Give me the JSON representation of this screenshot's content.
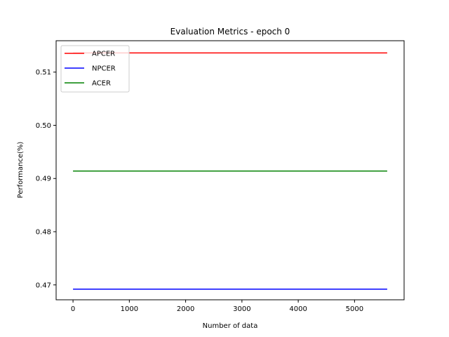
{
  "chart_data": {
    "type": "line",
    "title": "Evaluation Metrics - epoch 0",
    "xlabel": "Number of data",
    "ylabel": "Performance(%)",
    "xlim": [
      -300,
      5880
    ],
    "ylim": [
      0.4672,
      0.5159
    ],
    "x_ticks": [
      0,
      1000,
      2000,
      3000,
      4000,
      5000
    ],
    "y_ticks": [
      0.47,
      0.48,
      0.49,
      0.5,
      0.51
    ],
    "x_tick_labels": [
      "0",
      "1000",
      "2000",
      "3000",
      "4000",
      "5000"
    ],
    "y_tick_labels": [
      "0.47",
      "0.48",
      "0.49",
      "0.50",
      "0.51"
    ],
    "grid": false,
    "legend_position": "top-left",
    "series": [
      {
        "name": "APCER",
        "color": "#ff0000",
        "x": [
          0,
          5580
        ],
        "y": [
          0.5136,
          0.5136
        ]
      },
      {
        "name": "NPCER",
        "color": "#0000ff",
        "x": [
          0,
          5580
        ],
        "y": [
          0.4692,
          0.4692
        ]
      },
      {
        "name": "ACER",
        "color": "#008000",
        "x": [
          0,
          5580
        ],
        "y": [
          0.4914,
          0.4914
        ]
      }
    ]
  }
}
